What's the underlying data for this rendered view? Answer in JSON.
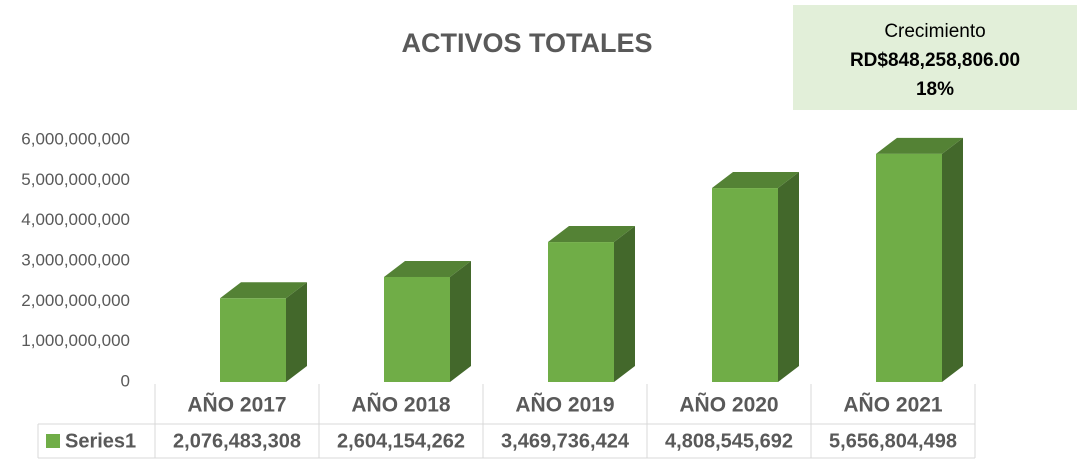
{
  "chart_data": {
    "type": "bar3d",
    "title": "ACTIVOS TOTALES",
    "annotations": [
      "Crecimiento",
      "RD$848,258,806.00",
      "18%"
    ],
    "categories": [
      "AÑO 2017",
      "AÑO 2018",
      "AÑO 2019",
      "AÑO 2020",
      "AÑO 2021"
    ],
    "series": [
      {
        "name": "Series1",
        "color": "#70ad47",
        "values": [
          2076483308,
          2604154262,
          3469736424,
          4808545692,
          5656804498
        ],
        "value_labels": [
          "2,076,483,308",
          "2,604,154,262",
          "3,469,736,424",
          "4,808,545,692",
          "5,656,804,498"
        ]
      }
    ],
    "ylim": [
      0,
      6000000000
    ],
    "yticks": [
      0,
      {
        "value": 1000000000,
        "label": "1,000,000,000"
      },
      {
        "value": 2000000000,
        "label": "2,000,000,000"
      },
      {
        "value": 3000000000,
        "label": "3,000,000,000"
      },
      {
        "value": 4000000000,
        "label": "4,000,000,000"
      },
      {
        "value": 5000000000,
        "label": "5,000,000,000"
      },
      {
        "value": 6000000000,
        "label": "6,000,000,000"
      }
    ],
    "grid": false,
    "data_table": true
  }
}
